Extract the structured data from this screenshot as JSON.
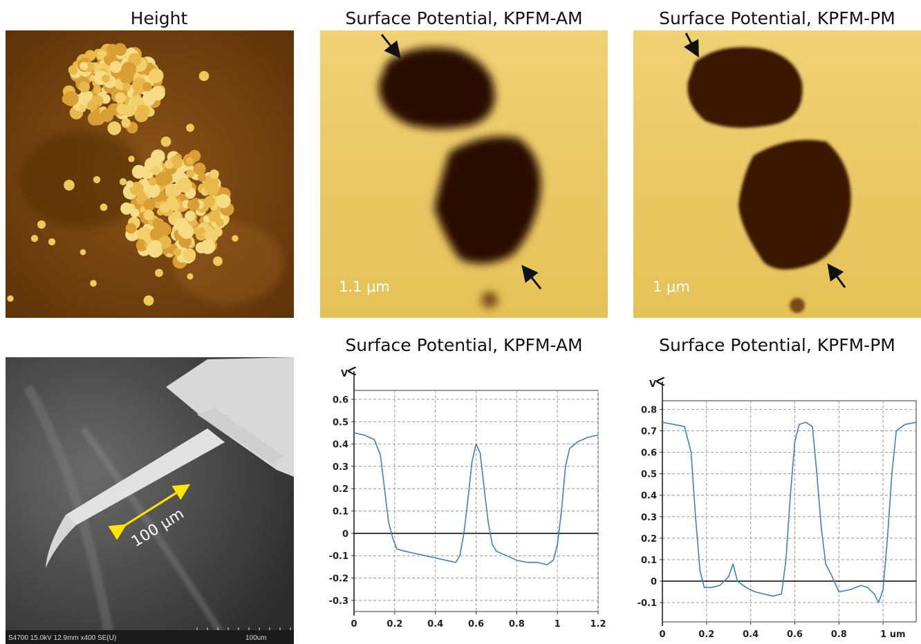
{
  "panels": {
    "height_title": "Height",
    "am_title": "Surface Potential, KPFM-AM",
    "pm_title": "Surface Potential, KPFM-PM",
    "am_scale": "1.1 μm",
    "pm_scale": "1 μm",
    "cantilever_label": "100 μm",
    "sem_info": "S4700 15.0kV 12.9mm x400 SE(U)",
    "sem_scale": "100um"
  },
  "chart_data": [
    {
      "type": "line",
      "title": "Surface Potential, KPFM-AM",
      "y_label": "V",
      "color": "#3b7fc4",
      "x": [
        0,
        0.05,
        0.1,
        0.13,
        0.15,
        0.17,
        0.19,
        0.21,
        0.25,
        0.3,
        0.35,
        0.4,
        0.45,
        0.5,
        0.52,
        0.54,
        0.56,
        0.58,
        0.6,
        0.62,
        0.64,
        0.66,
        0.68,
        0.7,
        0.75,
        0.8,
        0.85,
        0.9,
        0.95,
        0.98,
        1.0,
        1.02,
        1.04,
        1.06,
        1.1,
        1.15,
        1.2
      ],
      "values": [
        0.45,
        0.44,
        0.42,
        0.35,
        0.2,
        0.05,
        -0.02,
        -0.07,
        -0.08,
        -0.09,
        -0.1,
        -0.11,
        -0.12,
        -0.13,
        -0.1,
        0.0,
        0.15,
        0.32,
        0.4,
        0.36,
        0.2,
        0.05,
        -0.05,
        -0.08,
        -0.1,
        -0.12,
        -0.13,
        -0.13,
        -0.14,
        -0.12,
        -0.05,
        0.1,
        0.3,
        0.38,
        0.41,
        0.43,
        0.44
      ],
      "xlim": [
        0,
        1.2
      ],
      "ylim": [
        -0.35,
        0.64
      ],
      "xticks": [
        0,
        0.2,
        0.4,
        0.6,
        0.8,
        1,
        1.2
      ],
      "yticks": [
        -0.3,
        -0.2,
        -0.1,
        0,
        0.1,
        0.2,
        0.3,
        0.4,
        0.5,
        0.6
      ],
      "grid": true
    },
    {
      "type": "line",
      "title": "Surface Potential, KPFM-PM",
      "y_label": "V",
      "color": "#3b7fc4",
      "x": [
        0,
        0.05,
        0.1,
        0.13,
        0.15,
        0.17,
        0.19,
        0.22,
        0.26,
        0.3,
        0.32,
        0.34,
        0.38,
        0.42,
        0.46,
        0.5,
        0.54,
        0.56,
        0.58,
        0.6,
        0.62,
        0.65,
        0.68,
        0.7,
        0.72,
        0.74,
        0.77,
        0.8,
        0.85,
        0.9,
        0.93,
        0.96,
        0.98,
        1.0,
        1.02,
        1.04,
        1.06,
        1.1,
        1.15
      ],
      "values": [
        0.74,
        0.73,
        0.72,
        0.6,
        0.3,
        0.05,
        -0.03,
        -0.03,
        -0.02,
        0.02,
        0.08,
        0.0,
        -0.03,
        -0.05,
        -0.06,
        -0.07,
        -0.06,
        0.1,
        0.4,
        0.65,
        0.73,
        0.74,
        0.72,
        0.5,
        0.25,
        0.08,
        0.02,
        -0.05,
        -0.04,
        -0.02,
        -0.03,
        -0.06,
        -0.1,
        -0.04,
        0.2,
        0.5,
        0.7,
        0.73,
        0.74
      ],
      "xlim": [
        0,
        1.15
      ],
      "ylim": [
        -0.19,
        0.84
      ],
      "xticks": [
        0,
        0.2,
        0.4,
        0.6,
        0.8,
        {
          "value": 1,
          "label": "1 um"
        }
      ],
      "yticks": [
        -0.1,
        0,
        0.1,
        0.2,
        0.3,
        0.4,
        0.5,
        0.6,
        0.7,
        0.8
      ],
      "grid": true
    }
  ]
}
